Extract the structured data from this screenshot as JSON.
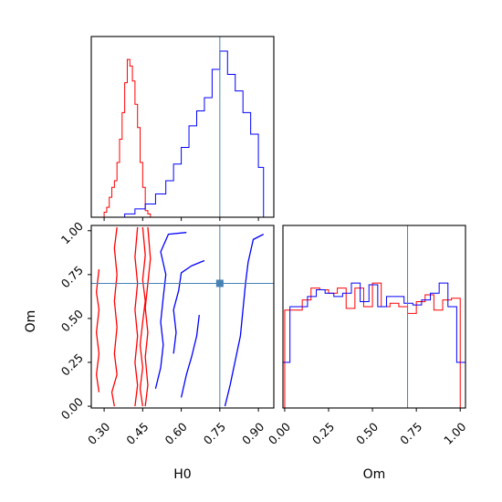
{
  "chart_data": {
    "type": "corner",
    "parameters": [
      "H0",
      "Om"
    ],
    "truths": {
      "H0": 0.75,
      "Om": 0.7
    },
    "truth_color": "#4682b4",
    "series_colors": {
      "red": "#ff0000",
      "blue": "#0000ff"
    },
    "axes": {
      "H0": {
        "label": "H0",
        "range": [
          0.25,
          0.96
        ],
        "ticks": [
          "0.30",
          "0.45",
          "0.60",
          "0.75",
          "0.90"
        ]
      },
      "Om": {
        "label": "Om",
        "range": [
          -0.01,
          1.03
        ],
        "ticks": [
          "0.00",
          "0.25",
          "0.50",
          "0.75",
          "1.00"
        ]
      }
    },
    "hist_H0": {
      "red_edges": [
        0.25,
        0.3,
        0.31,
        0.32,
        0.33,
        0.34,
        0.35,
        0.36,
        0.37,
        0.38,
        0.39,
        0.4,
        0.41,
        0.42,
        0.43,
        0.44,
        0.45,
        0.46,
        0.47,
        0.48,
        0.49
      ],
      "red_counts": [
        0,
        0.03,
        0.06,
        0.12,
        0.18,
        0.22,
        0.33,
        0.47,
        0.63,
        0.81,
        0.95,
        0.91,
        0.82,
        0.68,
        0.54,
        0.33,
        0.18,
        0.04,
        0.02,
        0
      ],
      "blue_edges": [
        0.25,
        0.38,
        0.42,
        0.46,
        0.5,
        0.54,
        0.57,
        0.6,
        0.63,
        0.66,
        0.69,
        0.72,
        0.75,
        0.78,
        0.81,
        0.84,
        0.87,
        0.9,
        0.92,
        0.96
      ],
      "blue_counts": [
        0,
        0.02,
        0.05,
        0.08,
        0.14,
        0.22,
        0.32,
        0.42,
        0.55,
        0.64,
        0.72,
        0.89,
        1.0,
        0.86,
        0.76,
        0.63,
        0.5,
        0.3,
        0
      ]
    },
    "hist_Om": {
      "red_edges": [
        0.0,
        0.05,
        0.1,
        0.15,
        0.2,
        0.25,
        0.3,
        0.35,
        0.4,
        0.45,
        0.5,
        0.55,
        0.6,
        0.65,
        0.7,
        0.75,
        0.8,
        0.85,
        0.9,
        0.95,
        1.0
      ],
      "red_counts": [
        0.58,
        0.58,
        0.64,
        0.71,
        0.7,
        0.68,
        0.71,
        0.59,
        0.71,
        0.6,
        0.74,
        0.6,
        0.62,
        0.6,
        0.56,
        0.63,
        0.67,
        0.58,
        0.64,
        0.65
      ],
      "blue_edges": [
        -0.01,
        0.03,
        0.08,
        0.13,
        0.18,
        0.23,
        0.28,
        0.33,
        0.38,
        0.43,
        0.48,
        0.53,
        0.58,
        0.63,
        0.68,
        0.73,
        0.78,
        0.83,
        0.88,
        0.93,
        0.98,
        1.03
      ],
      "blue_counts": [
        0.27,
        0.6,
        0.6,
        0.66,
        0.7,
        0.68,
        0.66,
        0.68,
        0.74,
        0.63,
        0.73,
        0.6,
        0.66,
        0.66,
        0.62,
        0.61,
        0.64,
        0.68,
        0.74,
        0.6,
        0.27
      ]
    },
    "contours": {
      "red": [
        [
          [
            0.34,
            0.0
          ],
          [
            0.33,
            0.08
          ],
          [
            0.35,
            0.18
          ],
          [
            0.34,
            0.3
          ],
          [
            0.35,
            0.45
          ],
          [
            0.34,
            0.6
          ],
          [
            0.35,
            0.75
          ],
          [
            0.34,
            0.9
          ],
          [
            0.35,
            1.02
          ]
        ],
        [
          [
            0.42,
            0.0
          ],
          [
            0.43,
            0.12
          ],
          [
            0.42,
            0.25
          ],
          [
            0.43,
            0.4
          ],
          [
            0.42,
            0.55
          ],
          [
            0.43,
            0.7
          ],
          [
            0.42,
            0.85
          ],
          [
            0.43,
            1.02
          ]
        ],
        [
          [
            0.45,
            0.0
          ],
          [
            0.44,
            0.1
          ],
          [
            0.45,
            0.22
          ],
          [
            0.44,
            0.35
          ],
          [
            0.45,
            0.48
          ],
          [
            0.46,
            0.6
          ],
          [
            0.45,
            0.72
          ],
          [
            0.46,
            0.86
          ],
          [
            0.45,
            1.02
          ]
        ],
        [
          [
            0.46,
            0.0
          ],
          [
            0.47,
            0.12
          ],
          [
            0.46,
            0.28
          ],
          [
            0.47,
            0.42
          ],
          [
            0.46,
            0.56
          ],
          [
            0.47,
            0.7
          ],
          [
            0.48,
            0.84
          ],
          [
            0.47,
            1.02
          ]
        ],
        [
          [
            0.28,
            0.08
          ],
          [
            0.27,
            0.18
          ],
          [
            0.28,
            0.3
          ],
          [
            0.27,
            0.42
          ],
          [
            0.28,
            0.55
          ],
          [
            0.27,
            0.65
          ],
          [
            0.28,
            0.78
          ]
        ]
      ],
      "blue": [
        [
          [
            0.5,
            0.1
          ],
          [
            0.52,
            0.22
          ],
          [
            0.53,
            0.35
          ],
          [
            0.52,
            0.48
          ],
          [
            0.53,
            0.62
          ],
          [
            0.54,
            0.75
          ],
          [
            0.52,
            0.88
          ],
          [
            0.55,
            0.98
          ],
          [
            0.62,
            0.99
          ]
        ],
        [
          [
            0.57,
            0.3
          ],
          [
            0.58,
            0.42
          ],
          [
            0.57,
            0.55
          ],
          [
            0.59,
            0.66
          ],
          [
            0.6,
            0.76
          ],
          [
            0.64,
            0.8
          ],
          [
            0.69,
            0.83
          ]
        ],
        [
          [
            0.77,
            0.0
          ],
          [
            0.79,
            0.12
          ],
          [
            0.81,
            0.26
          ],
          [
            0.83,
            0.4
          ],
          [
            0.84,
            0.55
          ],
          [
            0.85,
            0.7
          ],
          [
            0.86,
            0.82
          ],
          [
            0.88,
            0.95
          ],
          [
            0.92,
            0.98
          ]
        ],
        [
          [
            0.6,
            0.05
          ],
          [
            0.62,
            0.18
          ],
          [
            0.64,
            0.28
          ],
          [
            0.66,
            0.4
          ],
          [
            0.67,
            0.52
          ]
        ]
      ]
    }
  }
}
